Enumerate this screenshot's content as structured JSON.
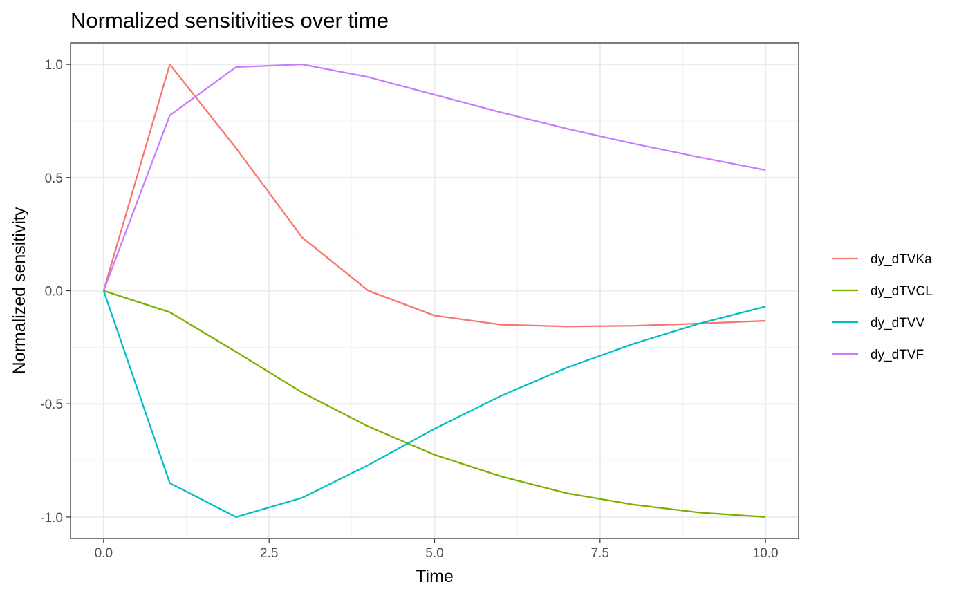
{
  "chart_data": {
    "type": "line",
    "title": "Normalized sensitivities over time",
    "xlabel": "Time",
    "ylabel": "Normalized sensitivity",
    "xlim": [
      -0.5,
      10.5
    ],
    "ylim": [
      -1.095,
      1.095
    ],
    "x_ticks": [
      0,
      2.5,
      5,
      7.5,
      10
    ],
    "x_tick_labels": [
      "0.0",
      "2.5",
      "5.0",
      "7.5",
      "10.0"
    ],
    "x_minor_ticks": [
      1.25,
      3.75,
      6.25,
      8.75
    ],
    "y_ticks": [
      1,
      0.5,
      0,
      -0.5,
      -1
    ],
    "y_tick_labels": [
      "1.0",
      "0.5",
      "0.0",
      "-0.5",
      "-1.0"
    ],
    "y_minor_ticks": [
      0.75,
      0.25,
      -0.25,
      -0.75
    ],
    "grid": true,
    "legend_position": "right",
    "x": [
      0,
      1,
      2,
      3,
      4,
      5,
      6,
      7,
      8,
      9,
      10
    ],
    "series": [
      {
        "name": "dy_dTVKa",
        "color": "#F8766D",
        "values": [
          0,
          1.0,
          0.63,
          0.235,
          0.0,
          -0.11,
          -0.15,
          -0.158,
          -0.155,
          -0.145,
          -0.133
        ]
      },
      {
        "name": "dy_dTVCL",
        "color": "#7CAE00",
        "values": [
          0,
          -0.095,
          -0.27,
          -0.45,
          -0.6,
          -0.725,
          -0.82,
          -0.895,
          -0.945,
          -0.98,
          -1.0
        ]
      },
      {
        "name": "dy_dTVV",
        "color": "#00BFC4",
        "values": [
          0,
          -0.85,
          -1.0,
          -0.915,
          -0.77,
          -0.61,
          -0.465,
          -0.34,
          -0.235,
          -0.145,
          -0.07
        ]
      },
      {
        "name": "dy_dTVF",
        "color": "#C77CFF",
        "values": [
          0,
          0.775,
          0.988,
          1.0,
          0.944,
          0.866,
          0.788,
          0.716,
          0.65,
          0.59,
          0.533
        ]
      }
    ]
  }
}
